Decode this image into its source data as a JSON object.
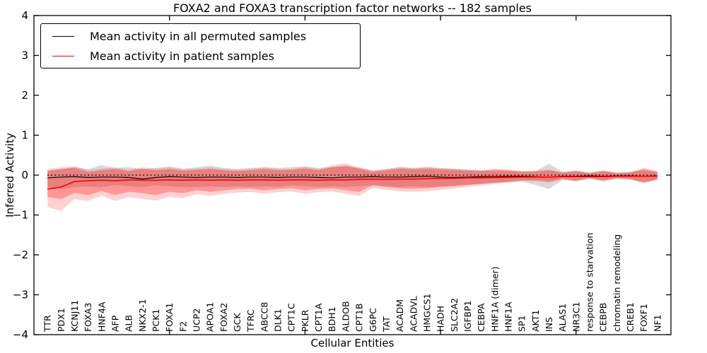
{
  "title": "FOXA2 and FOXA3 transcription factor networks -- 182 samples",
  "legend": {
    "items": [
      {
        "label": "Mean activity in all permuted samples",
        "color": "#000000"
      },
      {
        "label": "Mean activity in patient samples",
        "color": "#ff0000"
      }
    ]
  },
  "axes": {
    "ylabel": "Inferred Activity",
    "xlabel": "Cellular Entities",
    "y_tick_labels": [
      "4",
      "3",
      "2",
      "1",
      "0",
      "−1",
      "−2",
      "−3",
      "−4"
    ],
    "y_tick_values": [
      4,
      3,
      2,
      1,
      0,
      -1,
      -2,
      -3,
      -4
    ],
    "x_major_tick_values": [
      10,
      20,
      30,
      40
    ]
  },
  "colors": {
    "permuted_line": "#000000",
    "patient_line": "#ff0000",
    "permuted_band": "#808080",
    "patient_band": "#ff0000",
    "zero_line": "#000000",
    "axis": "#000000"
  },
  "chart_data": {
    "type": "line",
    "title": "FOXA2 and FOXA3 transcription factor networks -- 182 samples",
    "xlabel": "Cellular Entities",
    "ylabel": "Inferred Activity",
    "xlim": [
      0,
      47
    ],
    "ylim": [
      -4,
      4
    ],
    "grid": false,
    "legend_position": "upper left",
    "reference_line": {
      "y": 0,
      "style": "dotted",
      "color": "#000000"
    },
    "categories": [
      "TTR",
      "PDX1",
      "KCNJ11",
      "FOXA3",
      "HNF4A",
      "AFP",
      "ALB",
      "NKX2-1",
      "PCK1",
      "FOXA1",
      "F2",
      "UCP2",
      "APOA1",
      "FOXA2",
      "GCK",
      "TFRC",
      "ABCC8",
      "DLK1",
      "CPT1C",
      "PKLR",
      "CPT1A",
      "BDH1",
      "ALDOB",
      "CPT1B",
      "G6PC",
      "TAT",
      "ACADM",
      "ACADVL",
      "HMGCS1",
      "HADH",
      "SLC2A2",
      "IGFBP1",
      "CEBPA",
      "HNF1A (dimer)",
      "HNF1A",
      "SP1",
      "AKT1",
      "INS",
      "ALAS1",
      "NR3C1",
      "response to starvation",
      "CEBPB",
      "chromatin remodeling",
      "CREB1",
      "FOXF1",
      "NF1"
    ],
    "series": [
      {
        "name": "Mean activity in all permuted samples",
        "color": "#000000",
        "values": [
          -0.07,
          -0.05,
          -0.04,
          -0.06,
          -0.05,
          -0.05,
          -0.06,
          -0.1,
          -0.06,
          -0.04,
          -0.05,
          -0.06,
          -0.05,
          -0.05,
          -0.06,
          -0.05,
          -0.05,
          -0.06,
          -0.05,
          -0.05,
          -0.06,
          -0.07,
          -0.05,
          -0.05,
          -0.04,
          -0.05,
          -0.05,
          -0.04,
          -0.03,
          -0.05,
          -0.06,
          -0.05,
          -0.04,
          -0.04,
          -0.03,
          -0.03,
          -0.04,
          -0.05,
          -0.03,
          -0.03,
          -0.02,
          -0.03,
          -0.02,
          -0.02,
          -0.03,
          -0.02
        ]
      },
      {
        "name": "Mean activity in patient samples",
        "color": "#ff0000",
        "values": [
          -0.35,
          -0.3,
          -0.16,
          -0.14,
          -0.13,
          -0.14,
          -0.12,
          -0.13,
          -0.13,
          -0.12,
          -0.13,
          -0.12,
          -0.13,
          -0.12,
          -0.13,
          -0.12,
          -0.12,
          -0.13,
          -0.12,
          -0.12,
          -0.13,
          -0.12,
          -0.12,
          -0.11,
          -0.1,
          -0.11,
          -0.1,
          -0.1,
          -0.09,
          -0.08,
          -0.08,
          -0.07,
          -0.07,
          -0.06,
          -0.06,
          -0.05,
          -0.05,
          -0.05,
          -0.04,
          -0.04,
          -0.04,
          -0.04,
          -0.03,
          -0.03,
          -0.03,
          -0.03
        ]
      }
    ],
    "bands": [
      {
        "name": "permuted-samples-range",
        "color": "#808080",
        "opacity": 0.3,
        "upper": [
          0.12,
          0.15,
          0.2,
          0.15,
          0.25,
          0.18,
          0.2,
          0.15,
          0.18,
          0.22,
          0.16,
          0.2,
          0.24,
          0.18,
          0.16,
          0.18,
          0.2,
          0.18,
          0.2,
          0.22,
          0.18,
          0.2,
          0.22,
          0.18,
          0.12,
          0.15,
          0.2,
          0.18,
          0.2,
          0.18,
          0.16,
          0.14,
          0.12,
          0.1,
          0.1,
          0.08,
          0.1,
          0.28,
          0.08,
          0.12,
          0.06,
          0.1,
          0.06,
          0.08,
          0.12,
          0.08
        ],
        "lower": [
          -0.3,
          -0.35,
          -0.3,
          -0.28,
          -0.3,
          -0.25,
          -0.28,
          -0.3,
          -0.26,
          -0.28,
          -0.3,
          -0.3,
          -0.28,
          -0.3,
          -0.28,
          -0.3,
          -0.28,
          -0.3,
          -0.26,
          -0.28,
          -0.3,
          -0.28,
          -0.3,
          -0.28,
          -0.25,
          -0.28,
          -0.3,
          -0.28,
          -0.3,
          -0.28,
          -0.26,
          -0.24,
          -0.22,
          -0.2,
          -0.18,
          -0.16,
          -0.25,
          -0.35,
          -0.12,
          -0.16,
          -0.1,
          -0.16,
          -0.1,
          -0.12,
          -0.18,
          -0.12
        ]
      },
      {
        "name": "patient-samples-range-outer",
        "color": "#ff0000",
        "opacity": 0.18,
        "upper": [
          0.15,
          0.2,
          0.22,
          0.12,
          0.16,
          0.19,
          0.13,
          0.2,
          0.16,
          0.19,
          0.14,
          0.16,
          0.19,
          0.15,
          0.13,
          0.15,
          0.19,
          0.15,
          0.16,
          0.2,
          0.15,
          0.25,
          0.29,
          0.2,
          0.11,
          0.15,
          0.2,
          0.17,
          0.2,
          0.17,
          0.16,
          0.13,
          0.12,
          0.16,
          0.14,
          0.1,
          0.11,
          0.14,
          0.07,
          0.11,
          0.06,
          0.12,
          0.06,
          0.08,
          0.18,
          0.1
        ],
        "lower": [
          -0.8,
          -0.9,
          -0.6,
          -0.65,
          -0.52,
          -0.65,
          -0.55,
          -0.6,
          -0.64,
          -0.55,
          -0.58,
          -0.48,
          -0.52,
          -0.47,
          -0.44,
          -0.42,
          -0.47,
          -0.43,
          -0.41,
          -0.47,
          -0.43,
          -0.41,
          -0.47,
          -0.52,
          -0.32,
          -0.37,
          -0.41,
          -0.42,
          -0.41,
          -0.37,
          -0.34,
          -0.3,
          -0.26,
          -0.22,
          -0.19,
          -0.15,
          -0.15,
          -0.19,
          -0.11,
          -0.15,
          -0.08,
          -0.15,
          -0.08,
          -0.11,
          -0.21,
          -0.12
        ]
      },
      {
        "name": "patient-samples-range-inner",
        "color": "#ff0000",
        "opacity": 0.28,
        "upper": [
          0.1,
          0.15,
          0.18,
          0.08,
          0.12,
          0.15,
          0.1,
          0.16,
          0.12,
          0.15,
          0.11,
          0.13,
          0.15,
          0.12,
          0.1,
          0.12,
          0.15,
          0.12,
          0.13,
          0.16,
          0.12,
          0.2,
          0.24,
          0.16,
          0.08,
          0.12,
          0.16,
          0.14,
          0.16,
          0.14,
          0.13,
          0.11,
          0.1,
          0.14,
          0.12,
          0.09,
          0.09,
          0.12,
          0.06,
          0.09,
          0.05,
          0.1,
          0.05,
          0.06,
          0.15,
          0.08
        ],
        "lower": [
          -0.55,
          -0.6,
          -0.45,
          -0.5,
          -0.4,
          -0.5,
          -0.42,
          -0.45,
          -0.5,
          -0.42,
          -0.45,
          -0.38,
          -0.42,
          -0.38,
          -0.35,
          -0.34,
          -0.38,
          -0.35,
          -0.33,
          -0.38,
          -0.35,
          -0.33,
          -0.38,
          -0.42,
          -0.26,
          -0.3,
          -0.33,
          -0.34,
          -0.33,
          -0.3,
          -0.28,
          -0.25,
          -0.22,
          -0.19,
          -0.16,
          -0.13,
          -0.13,
          -0.16,
          -0.09,
          -0.13,
          -0.07,
          -0.13,
          -0.07,
          -0.09,
          -0.18,
          -0.1
        ]
      }
    ]
  }
}
